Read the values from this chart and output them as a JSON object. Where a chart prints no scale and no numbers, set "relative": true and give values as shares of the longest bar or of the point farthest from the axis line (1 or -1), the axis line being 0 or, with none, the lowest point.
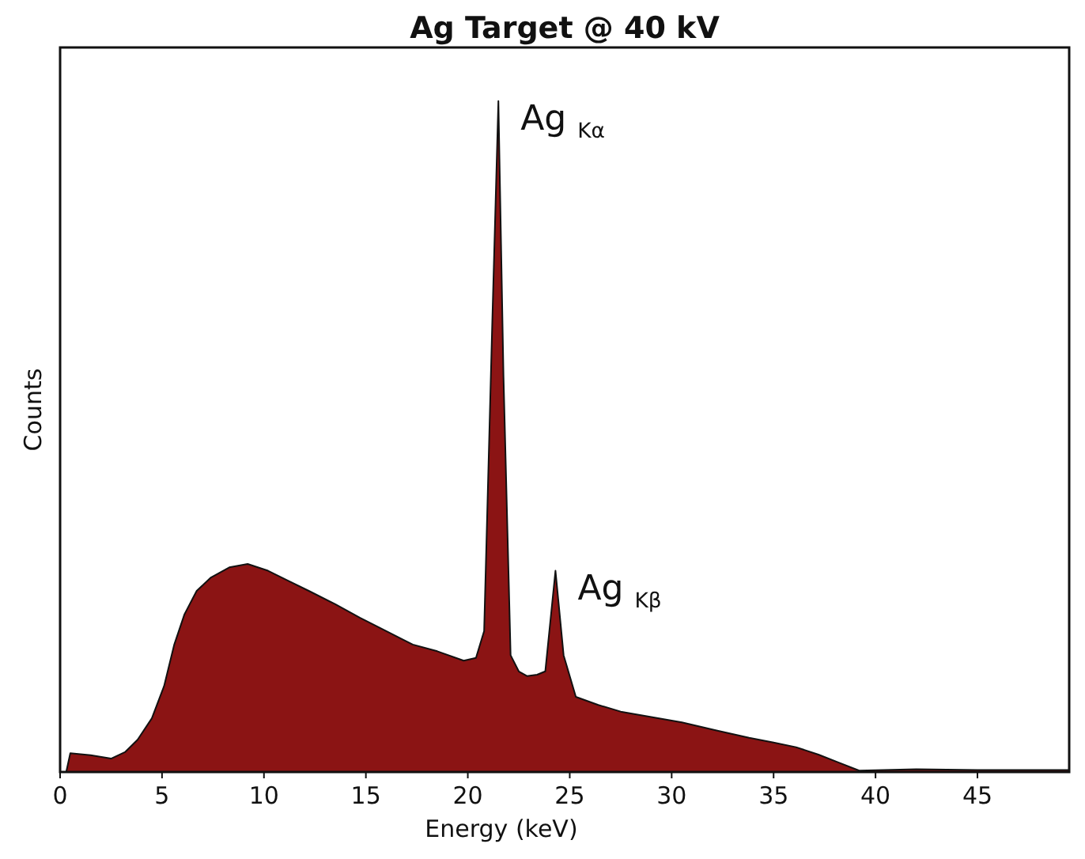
{
  "chart_data": {
    "type": "area",
    "title": "Ag Target @ 40 kV",
    "xlabel": "Energy (keV)",
    "ylabel": "Counts",
    "relative": true,
    "xlim": [
      0,
      49.5
    ],
    "xticks": [
      0,
      5,
      10,
      15,
      20,
      25,
      30,
      35,
      40,
      45
    ],
    "x": [
      0.3,
      0.5,
      1.5,
      2.5,
      3.2,
      3.8,
      4.5,
      5.1,
      5.6,
      6.1,
      6.7,
      7.4,
      8.3,
      9.2,
      10.2,
      11.2,
      12.2,
      13.5,
      14.7,
      16,
      17.3,
      18.5,
      19.8,
      20.4,
      20.8,
      21.2,
      21.5,
      21.75,
      22.1,
      22.5,
      22.9,
      23.4,
      23.8,
      24.3,
      24.7,
      25.3,
      26.4,
      27.5,
      29,
      30.5,
      32.2,
      33.8,
      35,
      36.1,
      37.2,
      38.2,
      39.2,
      42,
      45,
      49.5
    ],
    "series": [
      {
        "color": "#8b1414",
        "values": [
          0,
          0.028,
          0.025,
          0.02,
          0.03,
          0.048,
          0.08,
          0.128,
          0.19,
          0.235,
          0.27,
          0.29,
          0.305,
          0.31,
          0.3,
          0.285,
          0.27,
          0.25,
          0.23,
          0.21,
          0.19,
          0.18,
          0.166,
          0.17,
          0.21,
          0.67,
          1,
          0.59,
          0.174,
          0.15,
          0.143,
          0.145,
          0.15,
          0.3,
          0.174,
          0.112,
          0.1,
          0.09,
          0.082,
          0.074,
          0.062,
          0.051,
          0.044,
          0.037,
          0.026,
          0.014,
          0.002,
          0.004,
          0.003,
          0.003
        ]
      }
    ],
    "annotations": [
      {
        "text": "Ag $_{Kα}$",
        "x": 21.5,
        "y": 1
      },
      {
        "text": "Ag $_{Kβ}$",
        "x": 24.3,
        "y": 0.3
      }
    ]
  }
}
